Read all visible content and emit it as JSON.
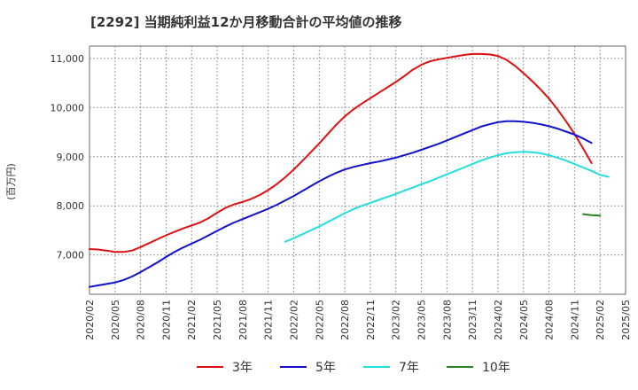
{
  "chart_data": {
    "type": "line",
    "title": "[2292]  当期純利益12か月移動合計の平均値の推移",
    "ylabel": "(百万円)",
    "ylim": [
      6200,
      11250
    ],
    "yticks": [
      7000,
      8000,
      9000,
      10000,
      11000
    ],
    "ytick_labels": [
      "7,000",
      "8,000",
      "9,000",
      "10,000",
      "11,000"
    ],
    "x_range": [
      "2020-02",
      "2025-05"
    ],
    "x_tick_labels": [
      "2020/02",
      "2020/05",
      "2020/08",
      "2020/11",
      "2021/02",
      "2021/05",
      "2021/08",
      "2021/11",
      "2022/02",
      "2022/05",
      "2022/08",
      "2022/11",
      "2023/02",
      "2023/05",
      "2023/08",
      "2023/11",
      "2024/02",
      "2024/05",
      "2024/08",
      "2024/11",
      "2025/02",
      "2025/05"
    ],
    "grid": true,
    "legend_position": "bottom",
    "series": [
      {
        "name": "3年",
        "color": "#dd1111",
        "points": [
          [
            "2020-02",
            7120
          ],
          [
            "2020-03",
            7110
          ],
          [
            "2020-04",
            7090
          ],
          [
            "2020-05",
            7060
          ],
          [
            "2020-06",
            7060
          ],
          [
            "2020-07",
            7090
          ],
          [
            "2020-08",
            7160
          ],
          [
            "2020-09",
            7240
          ],
          [
            "2020-10",
            7320
          ],
          [
            "2020-11",
            7400
          ],
          [
            "2020-12",
            7470
          ],
          [
            "2021-01",
            7540
          ],
          [
            "2021-02",
            7600
          ],
          [
            "2021-03",
            7660
          ],
          [
            "2021-04",
            7750
          ],
          [
            "2021-05",
            7860
          ],
          [
            "2021-06",
            7960
          ],
          [
            "2021-07",
            8030
          ],
          [
            "2021-08",
            8080
          ],
          [
            "2021-09",
            8140
          ],
          [
            "2021-10",
            8220
          ],
          [
            "2021-11",
            8320
          ],
          [
            "2021-12",
            8440
          ],
          [
            "2022-01",
            8580
          ],
          [
            "2022-02",
            8740
          ],
          [
            "2022-03",
            8910
          ],
          [
            "2022-04",
            9090
          ],
          [
            "2022-05",
            9270
          ],
          [
            "2022-06",
            9460
          ],
          [
            "2022-07",
            9650
          ],
          [
            "2022-08",
            9820
          ],
          [
            "2022-09",
            9960
          ],
          [
            "2022-10",
            10080
          ],
          [
            "2022-11",
            10190
          ],
          [
            "2022-12",
            10300
          ],
          [
            "2023-01",
            10410
          ],
          [
            "2023-02",
            10520
          ],
          [
            "2023-03",
            10640
          ],
          [
            "2023-04",
            10770
          ],
          [
            "2023-05",
            10870
          ],
          [
            "2023-06",
            10940
          ],
          [
            "2023-07",
            10980
          ],
          [
            "2023-08",
            11010
          ],
          [
            "2023-09",
            11040
          ],
          [
            "2023-10",
            11070
          ],
          [
            "2023-11",
            11090
          ],
          [
            "2023-12",
            11090
          ],
          [
            "2024-01",
            11080
          ],
          [
            "2024-02",
            11050
          ],
          [
            "2024-03",
            10970
          ],
          [
            "2024-04",
            10850
          ],
          [
            "2024-05",
            10700
          ],
          [
            "2024-06",
            10540
          ],
          [
            "2024-07",
            10370
          ],
          [
            "2024-08",
            10180
          ],
          [
            "2024-09",
            9960
          ],
          [
            "2024-10",
            9720
          ],
          [
            "2024-11",
            9460
          ],
          [
            "2024-12",
            9170
          ],
          [
            "2025-01",
            8870
          ]
        ]
      },
      {
        "name": "5年",
        "color": "#1111cc",
        "points": [
          [
            "2020-02",
            6350
          ],
          [
            "2020-03",
            6380
          ],
          [
            "2020-04",
            6410
          ],
          [
            "2020-05",
            6440
          ],
          [
            "2020-06",
            6490
          ],
          [
            "2020-07",
            6560
          ],
          [
            "2020-08",
            6650
          ],
          [
            "2020-09",
            6750
          ],
          [
            "2020-10",
            6850
          ],
          [
            "2020-11",
            6960
          ],
          [
            "2020-12",
            7060
          ],
          [
            "2021-01",
            7150
          ],
          [
            "2021-02",
            7230
          ],
          [
            "2021-03",
            7310
          ],
          [
            "2021-04",
            7400
          ],
          [
            "2021-05",
            7490
          ],
          [
            "2021-06",
            7580
          ],
          [
            "2021-07",
            7660
          ],
          [
            "2021-08",
            7730
          ],
          [
            "2021-09",
            7800
          ],
          [
            "2021-10",
            7870
          ],
          [
            "2021-11",
            7940
          ],
          [
            "2021-12",
            8020
          ],
          [
            "2022-01",
            8110
          ],
          [
            "2022-02",
            8200
          ],
          [
            "2022-03",
            8300
          ],
          [
            "2022-04",
            8400
          ],
          [
            "2022-05",
            8500
          ],
          [
            "2022-06",
            8590
          ],
          [
            "2022-07",
            8670
          ],
          [
            "2022-08",
            8740
          ],
          [
            "2022-09",
            8790
          ],
          [
            "2022-10",
            8830
          ],
          [
            "2022-11",
            8870
          ],
          [
            "2022-12",
            8900
          ],
          [
            "2023-01",
            8940
          ],
          [
            "2023-02",
            8980
          ],
          [
            "2023-03",
            9030
          ],
          [
            "2023-04",
            9080
          ],
          [
            "2023-05",
            9140
          ],
          [
            "2023-06",
            9200
          ],
          [
            "2023-07",
            9260
          ],
          [
            "2023-08",
            9330
          ],
          [
            "2023-09",
            9400
          ],
          [
            "2023-10",
            9470
          ],
          [
            "2023-11",
            9540
          ],
          [
            "2023-12",
            9610
          ],
          [
            "2024-01",
            9660
          ],
          [
            "2024-02",
            9700
          ],
          [
            "2024-03",
            9720
          ],
          [
            "2024-04",
            9720
          ],
          [
            "2024-05",
            9710
          ],
          [
            "2024-06",
            9690
          ],
          [
            "2024-07",
            9660
          ],
          [
            "2024-08",
            9620
          ],
          [
            "2024-09",
            9570
          ],
          [
            "2024-10",
            9510
          ],
          [
            "2024-11",
            9450
          ],
          [
            "2024-12",
            9370
          ],
          [
            "2025-01",
            9280
          ]
        ]
      },
      {
        "name": "7年",
        "color": "#22dddd",
        "points": [
          [
            "2022-01",
            7270
          ],
          [
            "2022-02",
            7340
          ],
          [
            "2022-03",
            7420
          ],
          [
            "2022-04",
            7500
          ],
          [
            "2022-05",
            7580
          ],
          [
            "2022-06",
            7670
          ],
          [
            "2022-07",
            7760
          ],
          [
            "2022-08",
            7850
          ],
          [
            "2022-09",
            7930
          ],
          [
            "2022-10",
            8000
          ],
          [
            "2022-11",
            8060
          ],
          [
            "2022-12",
            8120
          ],
          [
            "2023-01",
            8180
          ],
          [
            "2023-02",
            8240
          ],
          [
            "2023-03",
            8310
          ],
          [
            "2023-04",
            8370
          ],
          [
            "2023-05",
            8440
          ],
          [
            "2023-06",
            8500
          ],
          [
            "2023-07",
            8570
          ],
          [
            "2023-08",
            8640
          ],
          [
            "2023-09",
            8710
          ],
          [
            "2023-10",
            8780
          ],
          [
            "2023-11",
            8850
          ],
          [
            "2023-12",
            8920
          ],
          [
            "2024-01",
            8980
          ],
          [
            "2024-02",
            9030
          ],
          [
            "2024-03",
            9070
          ],
          [
            "2024-04",
            9090
          ],
          [
            "2024-05",
            9100
          ],
          [
            "2024-06",
            9090
          ],
          [
            "2024-07",
            9070
          ],
          [
            "2024-08",
            9030
          ],
          [
            "2024-09",
            8980
          ],
          [
            "2024-10",
            8920
          ],
          [
            "2024-11",
            8850
          ],
          [
            "2024-12",
            8780
          ],
          [
            "2025-01",
            8710
          ],
          [
            "2025-02",
            8630
          ],
          [
            "2025-03",
            8590
          ]
        ]
      },
      {
        "name": "10年",
        "color": "#228822",
        "points": [
          [
            "2024-12",
            7830
          ],
          [
            "2025-01",
            7810
          ],
          [
            "2025-02",
            7800
          ]
        ]
      }
    ]
  }
}
